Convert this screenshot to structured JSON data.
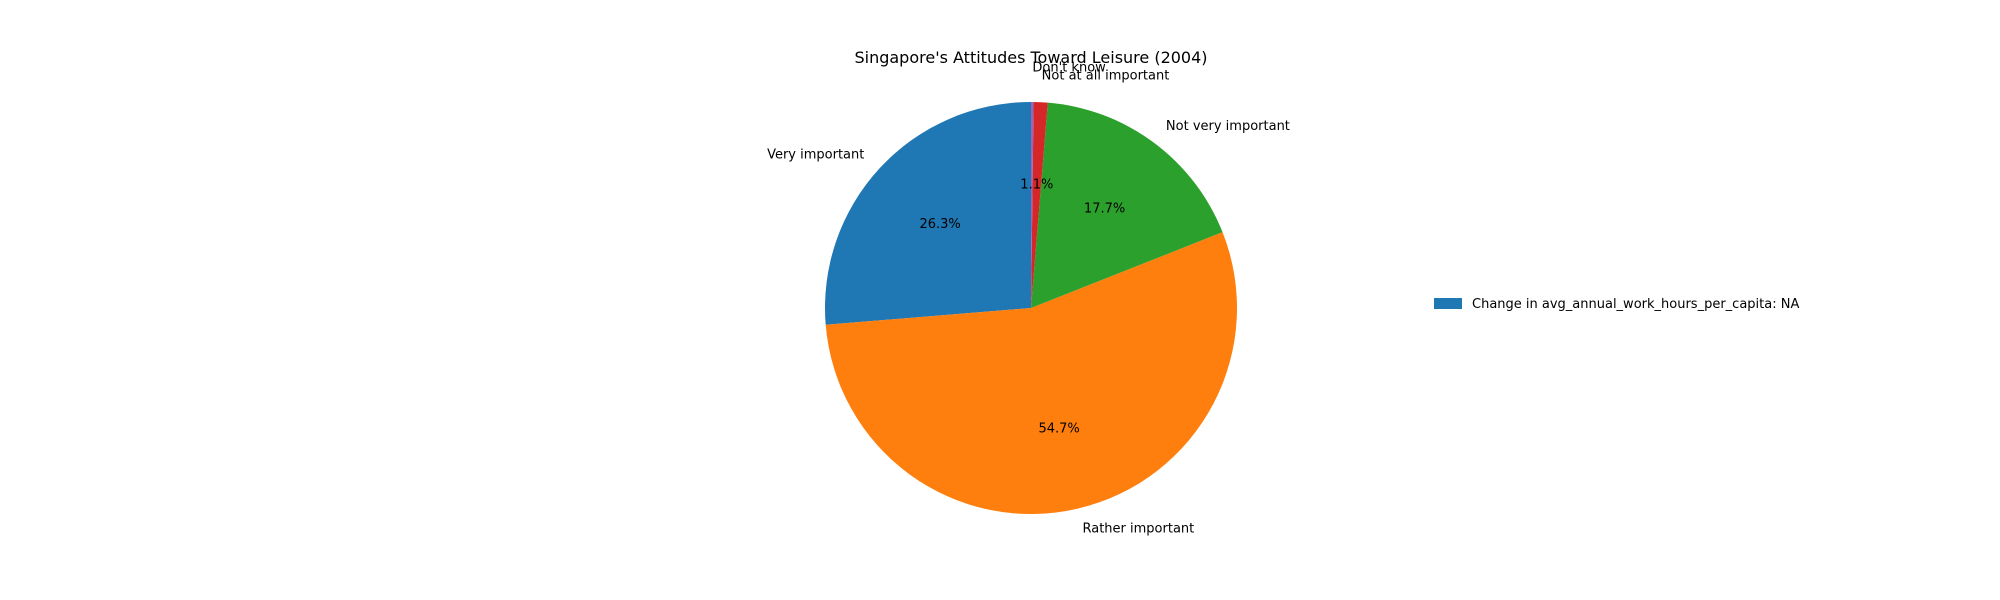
{
  "chart_data": {
    "type": "pie",
    "title": "Singapore's Attitudes Toward Leisure (2004)",
    "start_angle_deg": 90,
    "direction": "counterclockwise",
    "slices": [
      {
        "label": "Very important",
        "value": 26.3,
        "pct_label": "26.3%",
        "color": "#1f77b4"
      },
      {
        "label": "Rather important",
        "value": 54.7,
        "pct_label": "54.7%",
        "color": "#ff7f0e"
      },
      {
        "label": "Not very important",
        "value": 17.7,
        "pct_label": "17.7%",
        "color": "#2ca02c"
      },
      {
        "label": "Not at all important",
        "value": 1.1,
        "pct_label": "1.1%",
        "color": "#d62728"
      },
      {
        "label": "Don't know",
        "value": 0.2,
        "pct_label": "",
        "color": "#9467bd"
      }
    ],
    "legend": {
      "placement": "right",
      "entries": [
        {
          "label": "Change in avg_annual_work_hours_per_capita: NA",
          "color": "#1f77b4"
        }
      ]
    }
  }
}
